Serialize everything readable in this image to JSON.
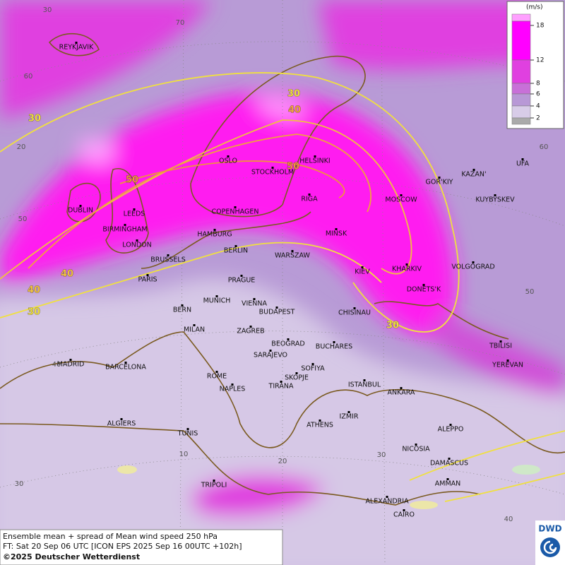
{
  "legend": {
    "unit": "(m/s)",
    "ticks": [
      "18",
      "12",
      "8",
      "6",
      "4",
      "2"
    ]
  },
  "cities": [
    "REYKJAVIK",
    "OSLO",
    "HELSINKI",
    "STOCKHOLM",
    "RIGA",
    "MOSCOW",
    "GOR'KIY",
    "KAZAN'",
    "UFA",
    "KUYBYSKEV",
    "DUBLIN",
    "LEEDS",
    "BIRMINGHAM",
    "LONDON",
    "COPENHAGEN",
    "HAMBURG",
    "BERLIN",
    "MINSK",
    "WARSZAW",
    "KIEV",
    "KHARKIV",
    "VOLGOGRAD",
    "BRUSSELS",
    "PARIS",
    "PRAGUE",
    "DONETS'K",
    "MUNICH",
    "VIENNA",
    "BERN",
    "BUDAPEST",
    "CHISINAU",
    "MILAN",
    "ZAGREB",
    "BEOGRAD",
    "BUCHARES",
    "TBILISI",
    "SARAJEVO",
    "YEREVAN",
    "MADRID",
    "BARCELONA",
    "SOFIYA",
    "ROME",
    "SKOPJE",
    "ISTANBUL",
    "TIRANA",
    "NAPLES",
    "ANKARA",
    "IZMIR",
    "ALGIERS",
    "ATHENS",
    "ALEPPO",
    "TUNIS",
    "NICOSIA",
    "DAMASCUS",
    "TRIPOLI",
    "AMMAN",
    "ALEXANDRIA",
    "CAIRO"
  ],
  "contour_labels": [
    "30",
    "30",
    "30",
    "30",
    "40",
    "40",
    "40",
    "50",
    "50"
  ],
  "graticule_labels": [
    "30",
    "70",
    "60",
    "20",
    "50",
    "40",
    "30",
    "10",
    "20",
    "30",
    "40",
    "50",
    "60"
  ],
  "footer": {
    "line1": "Ensemble mean + spread of Mean wind speed 250 hPa",
    "line2": "FT: Sat 20 Sep 06 UTC [ICON EPS 2025 Sep 16 00UTC +102h]",
    "line3": "©2025 Deutscher Wetterdienst"
  },
  "logo": "DWD"
}
